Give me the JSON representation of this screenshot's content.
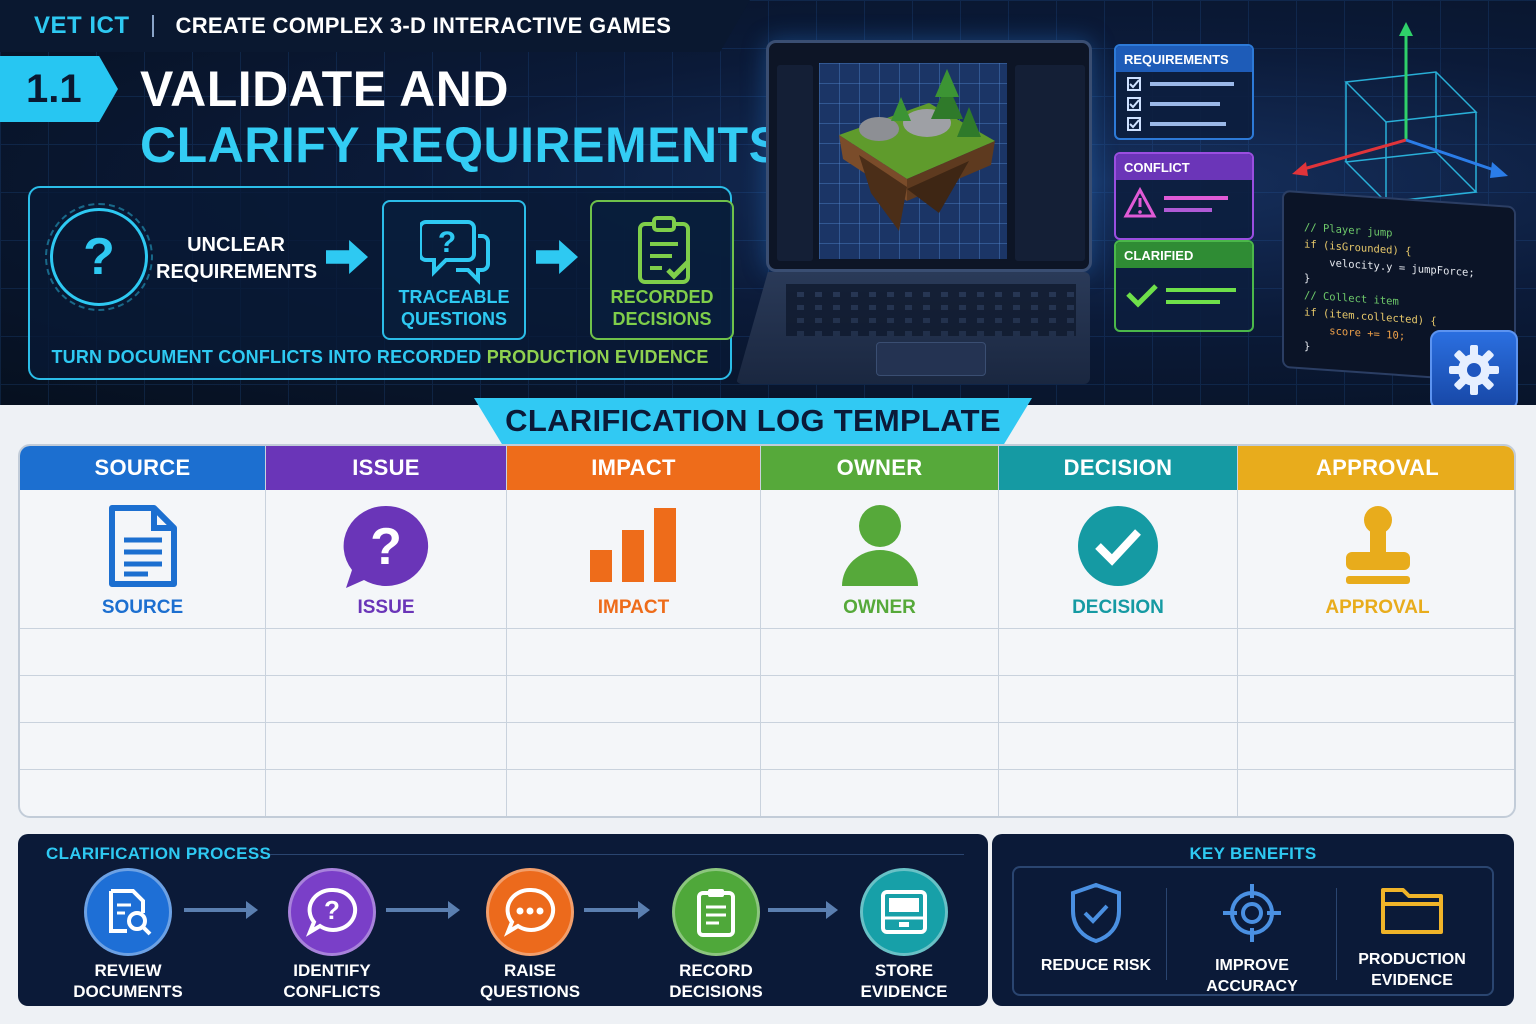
{
  "header": {
    "program": "VET ICT",
    "course": "CREATE COMPLEX 3-D INTERACTIVE GAMES",
    "unit_number": "1.1",
    "title_line1": "VALIDATE AND",
    "title_line2": "CLARIFY REQUIREMENTS"
  },
  "flow": {
    "unclear_label_line1": "UNCLEAR",
    "unclear_label_line2": "REQUIREMENTS",
    "traceable_line1": "TRACEABLE",
    "traceable_line2": "QUESTIONS",
    "recorded_line1": "RECORDED",
    "recorded_line2": "DECISIONS",
    "caption_prefix": "TURN DOCUMENT CONFLICTS INTO RECORDED",
    "caption_highlight": "PRODUCTION EVIDENCE"
  },
  "status_cards": {
    "requirements": "REQUIREMENTS",
    "conflict": "CONFLICT",
    "clarified": "CLARIFIED"
  },
  "code": {
    "lines": [
      "// Player jump",
      "if (isGrounded) {",
      "    velocity.y = jumpForce;",
      "}",
      "// Collect item",
      "if (item.collected) {",
      "    score += 10;",
      "}"
    ]
  },
  "log_template": {
    "title": "CLARIFICATION LOG TEMPLATE",
    "columns": [
      {
        "header": "SOURCE",
        "caption": "SOURCE",
        "icon": "document-icon",
        "color": "#1c6fd0"
      },
      {
        "header": "ISSUE",
        "caption": "ISSUE",
        "icon": "question-bubble-icon",
        "color": "#6a35b8"
      },
      {
        "header": "IMPACT",
        "caption": "IMPACT",
        "icon": "bar-chart-icon",
        "color": "#ee6c1a"
      },
      {
        "header": "OWNER",
        "caption": "OWNER",
        "icon": "person-icon",
        "color": "#56a93a"
      },
      {
        "header": "DECISION",
        "caption": "DECISION",
        "icon": "check-circle-icon",
        "color": "#159aa3"
      },
      {
        "header": "APPROVAL",
        "caption": "APPROVAL",
        "icon": "stamp-icon",
        "color": "#e8ac1c"
      }
    ]
  },
  "process": {
    "title": "CLARIFICATION PROCESS",
    "steps": [
      {
        "line1": "REVIEW",
        "line2": "DOCUMENTS",
        "icon": "document-search-icon",
        "color": "#1e6fd6"
      },
      {
        "line1": "IDENTIFY",
        "line2": "CONFLICTS",
        "icon": "question-bubble-icon",
        "color": "#7a3fc8"
      },
      {
        "line1": "RAISE",
        "line2": "QUESTIONS",
        "icon": "chat-bubble-icon",
        "color": "#ec6a1c"
      },
      {
        "line1": "RECORD",
        "line2": "DECISIONS",
        "icon": "clipboard-icon",
        "color": "#4fa83a"
      },
      {
        "line1": "STORE",
        "line2": "EVIDENCE",
        "icon": "archive-icon",
        "color": "#17a0a8"
      }
    ]
  },
  "benefits": {
    "title": "KEY BENEFITS",
    "items": [
      {
        "line1": "REDUCE RISK",
        "line2": "",
        "icon": "shield-check-icon"
      },
      {
        "line1": "IMPROVE ACCURACY",
        "line2": "",
        "icon": "target-icon"
      },
      {
        "line1": "PRODUCTION",
        "line2": "EVIDENCE",
        "icon": "folder-icon"
      }
    ]
  },
  "colors": {
    "accent_cyan": "#2ec9f2",
    "accent_green": "#8fd14f",
    "navy": "#0b1a38"
  }
}
